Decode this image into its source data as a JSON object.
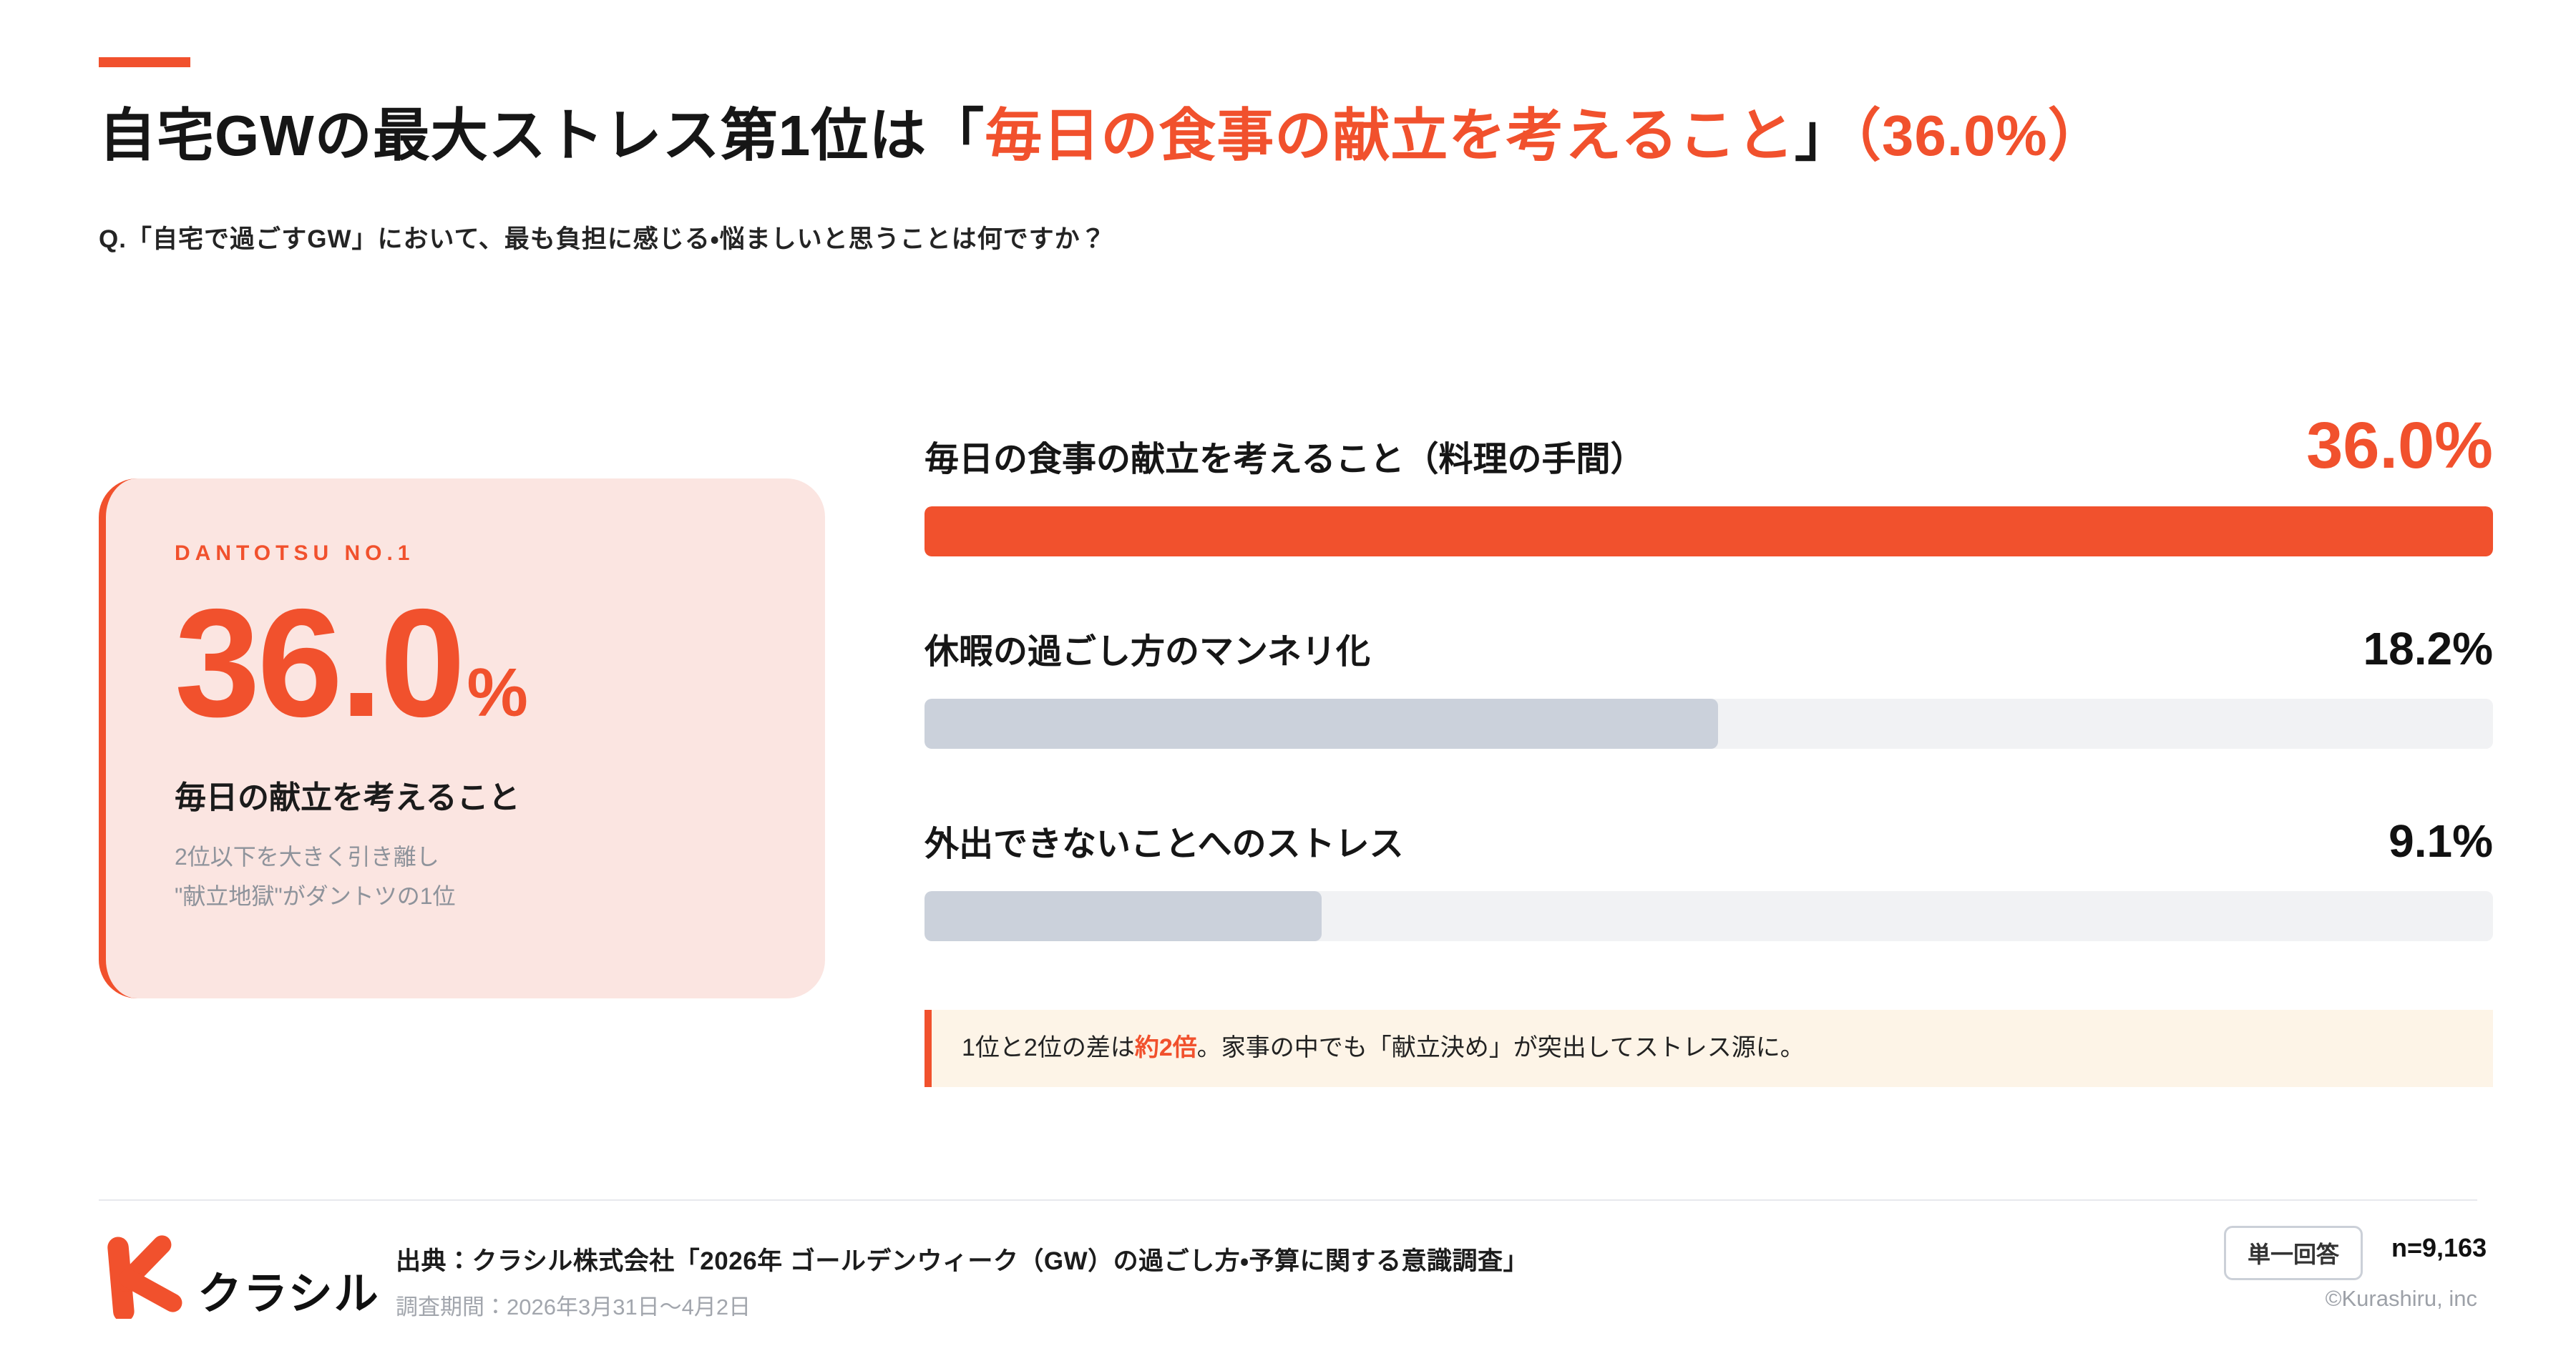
{
  "colors": {
    "accent": "#F1512D",
    "card_bg": "#FBE5E1",
    "bar_track": "#F1F2F4",
    "bar_fill_muted": "#CBD1DB",
    "note_bg": "#FDF4E7",
    "text_dark": "#161616",
    "text_gray": "#8E939B"
  },
  "header": {
    "title_segments": [
      {
        "text": "自宅GWの最大ストレス第1位は「",
        "highlight": false
      },
      {
        "text": "毎日の食事の献立を考えること",
        "highlight": true
      },
      {
        "text": "」",
        "highlight": false
      },
      {
        "text": "（36.0%）",
        "highlight": true
      }
    ],
    "question": "Q.「自宅で過ごすGW」において、最も負担に感じる・悩ましいと思うことは何ですか？"
  },
  "highlight_card": {
    "eyebrow": "DANTOTSU NO.1",
    "big_number": "36.0",
    "big_unit": "%",
    "headline": "毎日の献立を考えること",
    "sub_line1": "2位以下を大きく引き離し",
    "sub_line2": "\"献立地獄\"がダントツの1位"
  },
  "chart_data": {
    "type": "bar",
    "orientation": "horizontal",
    "title": "自宅GWで最も負担に感じること",
    "categories": [
      "毎日の食事の献立を考えること（料理の手間）",
      "休暇の過ごし方のマンネリ化",
      "外出できないことへのストレス"
    ],
    "values": [
      36.0,
      18.2,
      9.1
    ],
    "value_labels": [
      "36.0%",
      "18.2%",
      "9.1%"
    ],
    "xlim": [
      0,
      36.0
    ],
    "highlight_index": 0,
    "grid": false,
    "legend": false
  },
  "note": {
    "segments": [
      {
        "text": "1位と2位の差は",
        "highlight": false
      },
      {
        "text": "約2倍",
        "highlight": true
      },
      {
        "text": "。家事の中でも「献立決め」が突出してストレス源に。",
        "highlight": false
      }
    ]
  },
  "footer": {
    "brand_name": "クラシル",
    "source_line": "出典：クラシル株式会社「2026年 ゴールデンウィーク（GW）の過ごし方・予算に関する意識調査」",
    "period_line": "調査期間：2026年3月31日〜4月2日",
    "answer_type_badge": "単一回答",
    "sample_size": "n=9,163",
    "copyright": "©Kurashiru, inc"
  }
}
